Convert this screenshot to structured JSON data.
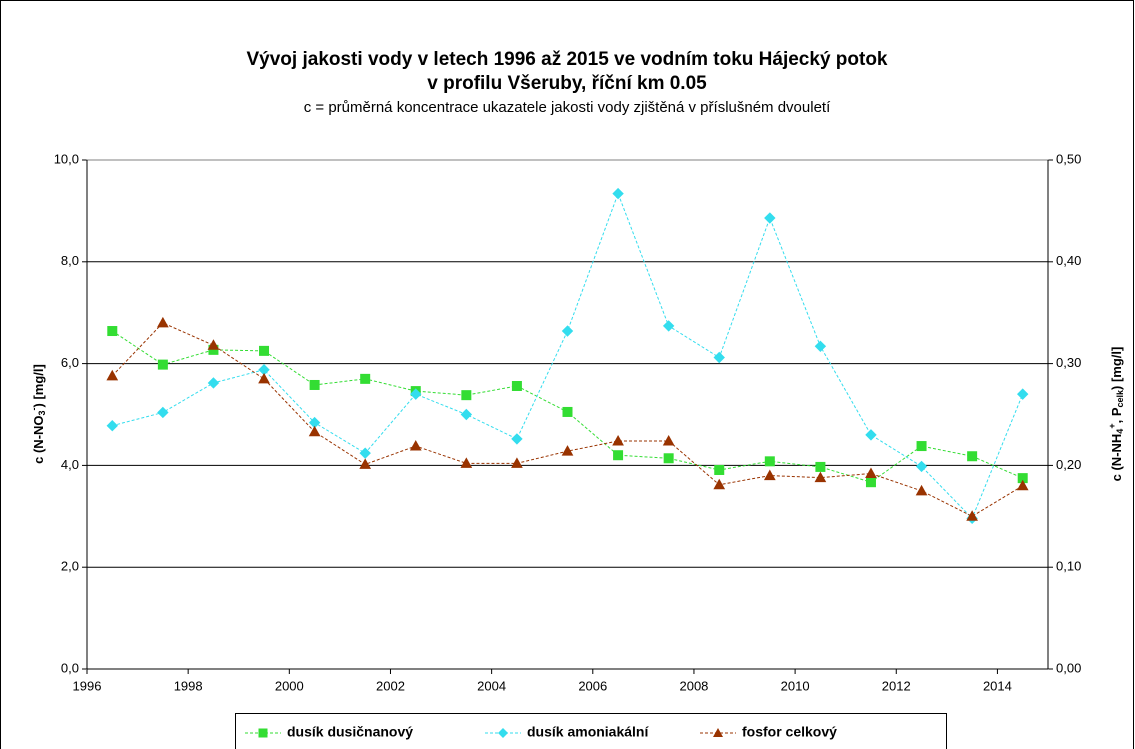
{
  "chart_data": {
    "type": "line",
    "title": [
      "Vývoj jakosti vody v letech 1996 až 2015 ve vodním toku Hájecký potok",
      "v profilu Všeruby, říční km 0.05"
    ],
    "subtitle": "c = průměrná koncentrace ukazatele jakosti vody zjištěná v příslušném dvouletí",
    "y_label": [
      "c (N-NO",
      "3",
      "-",
      ") [mg/l]"
    ],
    "y2_label": [
      "c (N-NH",
      "4",
      "+",
      ", P",
      "celk",
      ") [mg/l]"
    ],
    "x": [
      1996.5,
      1997.5,
      1998.5,
      1999.5,
      2000.5,
      2001.5,
      2002.5,
      2003.5,
      2004.5,
      2005.5,
      2006.5,
      2007.5,
      2008.5,
      2009.5,
      2010.5,
      2011.5,
      2012.5,
      2013.5,
      2014.5
    ],
    "xlim": [
      1996,
      2015
    ],
    "xticks": [
      1996,
      1998,
      2000,
      2002,
      2004,
      2006,
      2008,
      2010,
      2012,
      2014
    ],
    "ylim": [
      0,
      10
    ],
    "yticks": [
      {
        "value": 0,
        "label": "0,0"
      },
      {
        "value": 2,
        "label": "2,0"
      },
      {
        "value": 4,
        "label": "4,0"
      },
      {
        "value": 6,
        "label": "6,0"
      },
      {
        "value": 8,
        "label": "8,0"
      },
      {
        "value": 10,
        "label": "10,0"
      }
    ],
    "y2lim": [
      0,
      0.5
    ],
    "y2ticks": [
      {
        "value": 0,
        "label": "0,00"
      },
      {
        "value": 0.1,
        "label": "0,10"
      },
      {
        "value": 0.2,
        "label": "0,20"
      },
      {
        "value": 0.3,
        "label": "0,30"
      },
      {
        "value": 0.4,
        "label": "0,40"
      },
      {
        "value": 0.5,
        "label": "0,50"
      }
    ],
    "grid": true,
    "legend": "bottom",
    "series": [
      {
        "name": "dusík dusičnanový",
        "color": "#33dd33",
        "marker": "square",
        "axis": "y",
        "values": [
          6.64,
          5.98,
          6.27,
          6.25,
          5.58,
          5.7,
          5.46,
          5.38,
          5.56,
          5.05,
          4.2,
          4.14,
          3.91,
          4.08,
          3.97,
          3.67,
          4.38,
          4.18,
          3.75
        ]
      },
      {
        "name": "dusík amoniakální",
        "color": "#33ddee",
        "marker": "diamond",
        "axis": "y2",
        "values": [
          0.239,
          0.252,
          0.281,
          0.294,
          0.242,
          0.212,
          0.27,
          0.25,
          0.226,
          0.332,
          0.467,
          0.337,
          0.306,
          0.443,
          0.317,
          0.23,
          0.199,
          0.148,
          0.27
        ]
      },
      {
        "name": "fosfor celkový",
        "color": "#993300",
        "marker": "triangle",
        "axis": "y2",
        "values": [
          0.288,
          0.34,
          0.318,
          0.285,
          0.233,
          0.201,
          0.219,
          0.202,
          0.202,
          0.214,
          0.224,
          0.224,
          0.181,
          0.19,
          0.188,
          0.192,
          0.175,
          0.15,
          0.18
        ]
      }
    ]
  }
}
